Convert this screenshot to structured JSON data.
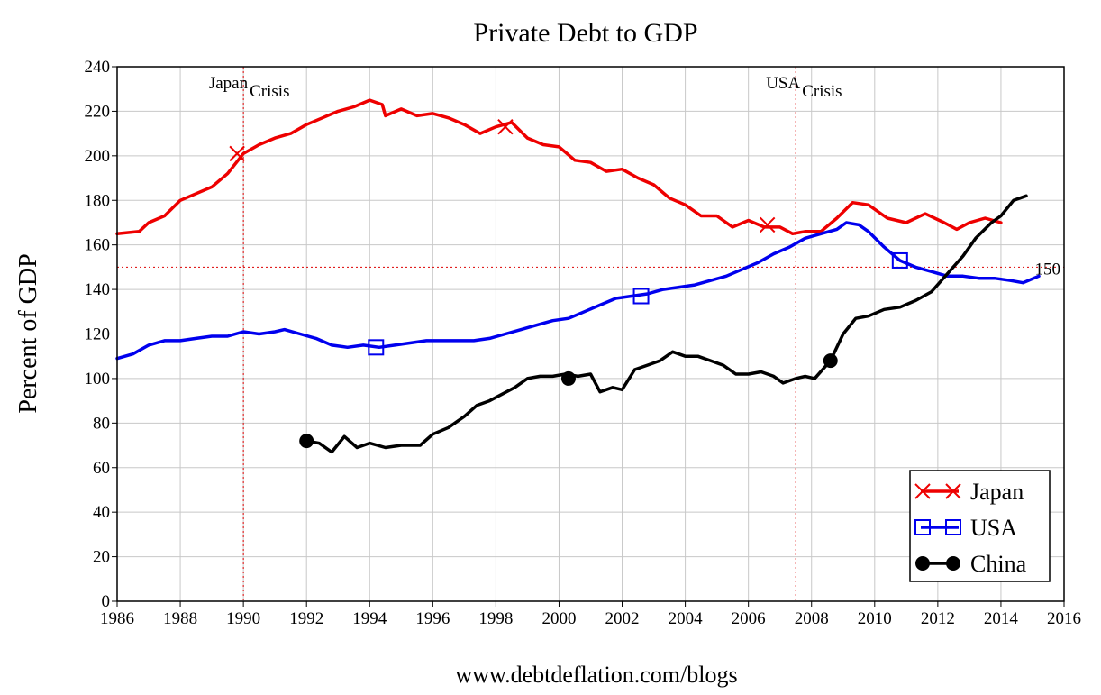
{
  "chart_data": {
    "type": "line",
    "title": "Private Debt to GDP",
    "xlabel": "",
    "ylabel": "Percent of GDP",
    "source": "www.debtdeflation.com/blogs",
    "xlim": [
      1986,
      2016
    ],
    "ylim": [
      0,
      240
    ],
    "x_ticks": [
      "1986",
      "1988",
      "1990",
      "1992",
      "1994",
      "1996",
      "1998",
      "2000",
      "2002",
      "2004",
      "2006",
      "2008",
      "2010",
      "2012",
      "2014",
      "2016"
    ],
    "y_ticks": [
      "0",
      "20",
      "40",
      "60",
      "80",
      "100",
      "120",
      "140",
      "160",
      "180",
      "200",
      "220",
      "240"
    ],
    "grid": true,
    "legend_position": "bottom-right",
    "reference_line": {
      "y": 150,
      "label": "150",
      "color": "#dd0000"
    },
    "annotations": [
      {
        "x": 1990,
        "label_top": "Japan",
        "label_bottom": "Crisis",
        "color": "#dd0000"
      },
      {
        "x": 2007.5,
        "label_top": "USA",
        "label_bottom": "Crisis",
        "color": "#dd0000"
      }
    ],
    "series": [
      {
        "name": "Japan",
        "color": "#ee0000",
        "marker": "x",
        "marker_points": [
          [
            1989.8,
            201
          ],
          [
            1998.3,
            213
          ],
          [
            2006.6,
            169
          ]
        ],
        "points": [
          [
            1986.0,
            165
          ],
          [
            1986.7,
            166
          ],
          [
            1987.0,
            170
          ],
          [
            1987.5,
            173
          ],
          [
            1988.0,
            180
          ],
          [
            1988.5,
            183
          ],
          [
            1989.0,
            186
          ],
          [
            1989.5,
            192
          ],
          [
            1990.0,
            201
          ],
          [
            1990.5,
            205
          ],
          [
            1991.0,
            208
          ],
          [
            1991.5,
            210
          ],
          [
            1992.0,
            214
          ],
          [
            1992.5,
            217
          ],
          [
            1993.0,
            220
          ],
          [
            1993.5,
            222
          ],
          [
            1994.0,
            225
          ],
          [
            1994.4,
            223
          ],
          [
            1994.5,
            218
          ],
          [
            1995.0,
            221
          ],
          [
            1995.5,
            218
          ],
          [
            1996.0,
            219
          ],
          [
            1996.5,
            217
          ],
          [
            1997.0,
            214
          ],
          [
            1997.5,
            210
          ],
          [
            1998.0,
            213
          ],
          [
            1998.5,
            215
          ],
          [
            1999.0,
            208
          ],
          [
            1999.5,
            205
          ],
          [
            2000.0,
            204
          ],
          [
            2000.5,
            198
          ],
          [
            2001.0,
            197
          ],
          [
            2001.5,
            193
          ],
          [
            2002.0,
            194
          ],
          [
            2002.5,
            190
          ],
          [
            2003.0,
            187
          ],
          [
            2003.5,
            181
          ],
          [
            2004.0,
            178
          ],
          [
            2004.5,
            173
          ],
          [
            2005.0,
            173
          ],
          [
            2005.5,
            168
          ],
          [
            2006.0,
            171
          ],
          [
            2006.5,
            168
          ],
          [
            2007.0,
            168
          ],
          [
            2007.4,
            165
          ],
          [
            2007.8,
            166
          ],
          [
            2008.3,
            166
          ],
          [
            2008.8,
            172
          ],
          [
            2009.3,
            179
          ],
          [
            2009.8,
            178
          ],
          [
            2010.4,
            172
          ],
          [
            2011.0,
            170
          ],
          [
            2011.6,
            174
          ],
          [
            2012.2,
            170
          ],
          [
            2012.6,
            167
          ],
          [
            2013.0,
            170
          ],
          [
            2013.5,
            172
          ],
          [
            2014.0,
            170
          ]
        ]
      },
      {
        "name": "USA",
        "color": "#0000ee",
        "marker": "square",
        "marker_points": [
          [
            1994.2,
            114
          ],
          [
            2002.6,
            137
          ],
          [
            2010.8,
            153
          ]
        ],
        "points": [
          [
            1986.0,
            109
          ],
          [
            1986.5,
            111
          ],
          [
            1987.0,
            115
          ],
          [
            1987.5,
            117
          ],
          [
            1988.0,
            117
          ],
          [
            1988.5,
            118
          ],
          [
            1989.0,
            119
          ],
          [
            1989.5,
            119
          ],
          [
            1990.0,
            121
          ],
          [
            1990.5,
            120
          ],
          [
            1991.0,
            121
          ],
          [
            1991.3,
            122
          ],
          [
            1991.8,
            120
          ],
          [
            1992.3,
            118
          ],
          [
            1992.8,
            115
          ],
          [
            1993.3,
            114
          ],
          [
            1993.8,
            115
          ],
          [
            1994.3,
            114
          ],
          [
            1994.8,
            115
          ],
          [
            1995.3,
            116
          ],
          [
            1995.8,
            117
          ],
          [
            1996.3,
            117
          ],
          [
            1996.8,
            117
          ],
          [
            1997.3,
            117
          ],
          [
            1997.8,
            118
          ],
          [
            1998.3,
            120
          ],
          [
            1998.8,
            122
          ],
          [
            1999.3,
            124
          ],
          [
            1999.8,
            126
          ],
          [
            2000.3,
            127
          ],
          [
            2000.8,
            130
          ],
          [
            2001.3,
            133
          ],
          [
            2001.8,
            136
          ],
          [
            2002.3,
            137
          ],
          [
            2002.8,
            138
          ],
          [
            2003.3,
            140
          ],
          [
            2003.8,
            141
          ],
          [
            2004.3,
            142
          ],
          [
            2004.8,
            144
          ],
          [
            2005.3,
            146
          ],
          [
            2005.8,
            149
          ],
          [
            2006.3,
            152
          ],
          [
            2006.8,
            156
          ],
          [
            2007.3,
            159
          ],
          [
            2007.8,
            163
          ],
          [
            2008.3,
            165
          ],
          [
            2008.8,
            167
          ],
          [
            2009.1,
            170
          ],
          [
            2009.5,
            169
          ],
          [
            2009.8,
            166
          ],
          [
            2010.3,
            159
          ],
          [
            2010.8,
            153
          ],
          [
            2011.3,
            150
          ],
          [
            2011.8,
            148
          ],
          [
            2012.3,
            146
          ],
          [
            2012.8,
            146
          ],
          [
            2013.3,
            145
          ],
          [
            2013.8,
            145
          ],
          [
            2014.3,
            144
          ],
          [
            2014.7,
            143
          ],
          [
            2015.2,
            146
          ]
        ]
      },
      {
        "name": "China",
        "color": "#000000",
        "marker": "circle",
        "marker_points": [
          [
            1992.0,
            72
          ],
          [
            2000.3,
            100
          ],
          [
            2008.6,
            108
          ]
        ],
        "points": [
          [
            1992.0,
            72
          ],
          [
            1992.4,
            71
          ],
          [
            1992.8,
            67
          ],
          [
            1993.2,
            74
          ],
          [
            1993.6,
            69
          ],
          [
            1994.0,
            71
          ],
          [
            1994.5,
            69
          ],
          [
            1995.0,
            70
          ],
          [
            1995.6,
            70
          ],
          [
            1996.0,
            75
          ],
          [
            1996.5,
            78
          ],
          [
            1997.0,
            83
          ],
          [
            1997.4,
            88
          ],
          [
            1997.8,
            90
          ],
          [
            1998.2,
            93
          ],
          [
            1998.6,
            96
          ],
          [
            1999.0,
            100
          ],
          [
            1999.4,
            101
          ],
          [
            1999.8,
            101
          ],
          [
            2000.2,
            102
          ],
          [
            2000.6,
            101
          ],
          [
            2001.0,
            102
          ],
          [
            2001.3,
            94
          ],
          [
            2001.7,
            96
          ],
          [
            2002.0,
            95
          ],
          [
            2002.4,
            104
          ],
          [
            2002.8,
            106
          ],
          [
            2003.2,
            108
          ],
          [
            2003.6,
            112
          ],
          [
            2004.0,
            110
          ],
          [
            2004.4,
            110
          ],
          [
            2004.8,
            108
          ],
          [
            2005.2,
            106
          ],
          [
            2005.6,
            102
          ],
          [
            2006.0,
            102
          ],
          [
            2006.4,
            103
          ],
          [
            2006.8,
            101
          ],
          [
            2007.1,
            98
          ],
          [
            2007.5,
            100
          ],
          [
            2007.8,
            101
          ],
          [
            2008.1,
            100
          ],
          [
            2008.6,
            108
          ],
          [
            2009.0,
            120
          ],
          [
            2009.4,
            127
          ],
          [
            2009.8,
            128
          ],
          [
            2010.3,
            131
          ],
          [
            2010.8,
            132
          ],
          [
            2011.3,
            135
          ],
          [
            2011.8,
            139
          ],
          [
            2012.3,
            147
          ],
          [
            2012.8,
            155
          ],
          [
            2013.2,
            163
          ],
          [
            2013.7,
            170
          ],
          [
            2014.0,
            173
          ],
          [
            2014.4,
            180
          ],
          [
            2014.8,
            182
          ]
        ]
      }
    ]
  }
}
